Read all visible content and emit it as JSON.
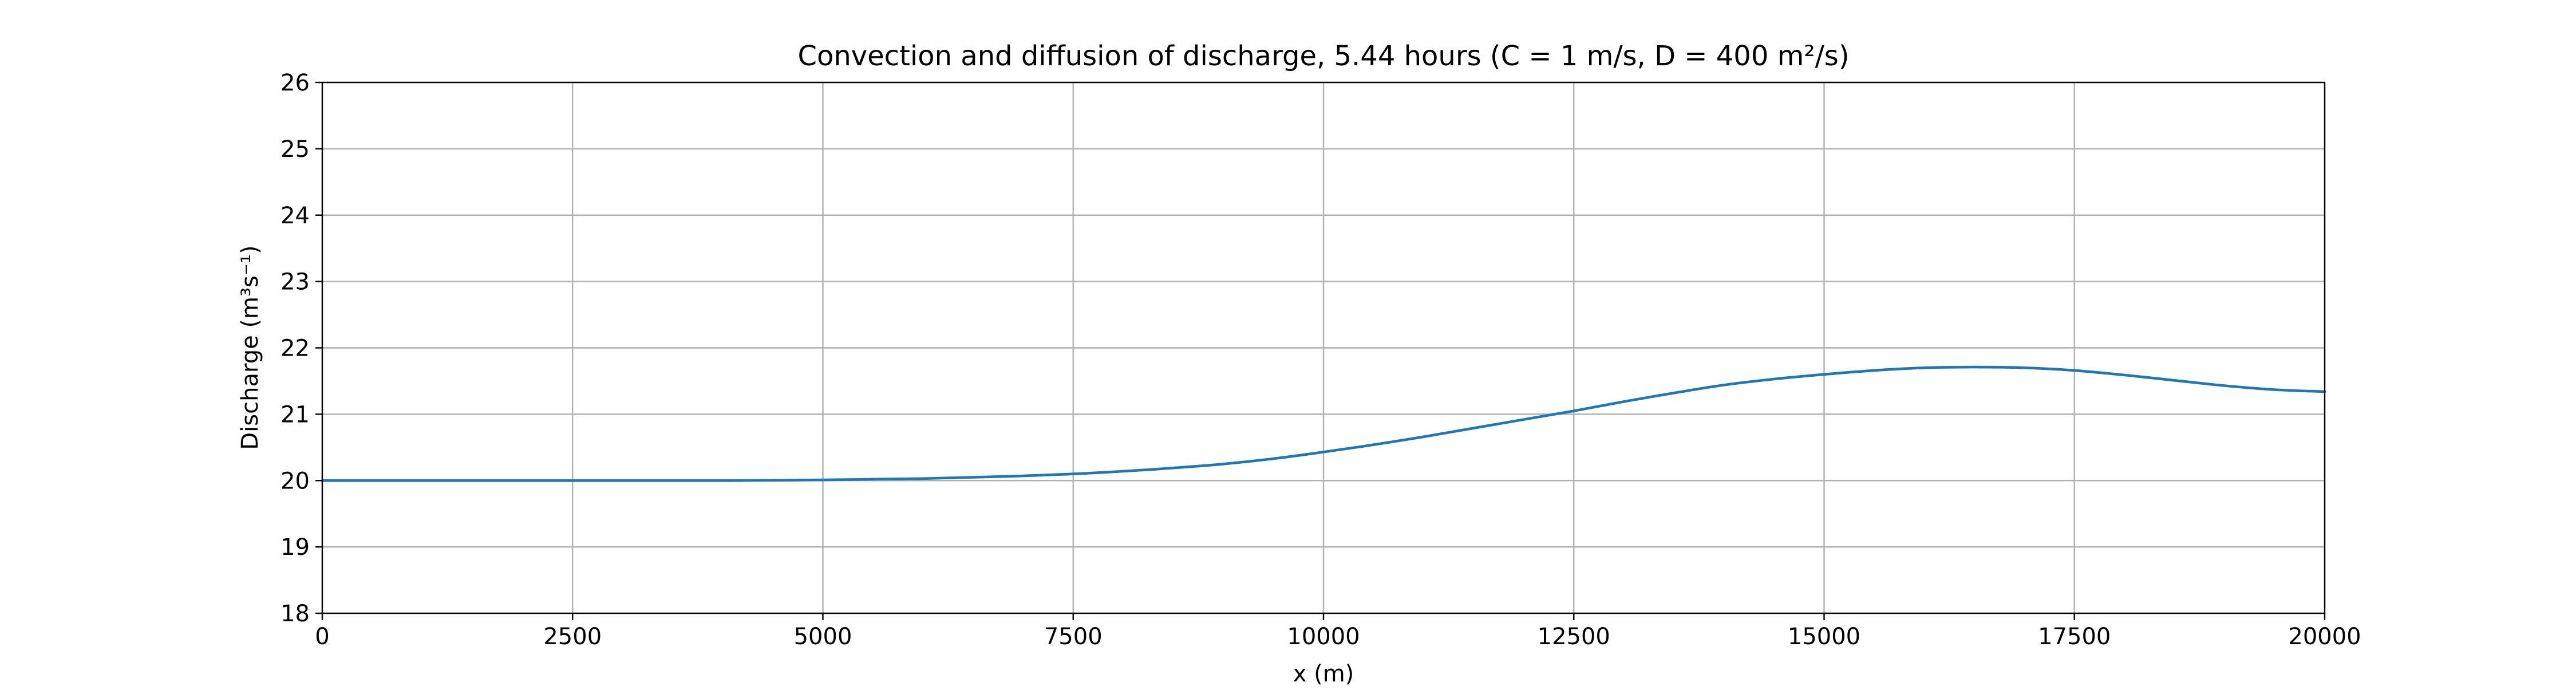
{
  "chart_data": {
    "type": "line",
    "title": "Convection and diffusion of discharge, 5.44 hours (C = 1 m/s, D = 400 m²/s)",
    "xlabel": "x (m)",
    "ylabel": "Discharge (m³s⁻¹)",
    "xlim": [
      0,
      20000
    ],
    "ylim": [
      18,
      26
    ],
    "x_ticks": [
      "0",
      "2500",
      "5000",
      "7500",
      "10000",
      "12500",
      "15000",
      "17500",
      "20000"
    ],
    "y_ticks": [
      "18",
      "19",
      "20",
      "21",
      "22",
      "23",
      "24",
      "25",
      "26"
    ],
    "grid": true,
    "series": [
      {
        "color": "#1f77b4",
        "x": [
          0,
          1000,
          2000,
          3000,
          4000,
          5000,
          5500,
          6000,
          6500,
          7000,
          7500,
          8000,
          8500,
          9000,
          9500,
          10000,
          10500,
          11000,
          11500,
          12000,
          12500,
          13000,
          13500,
          14000,
          14500,
          15000,
          15500,
          16000,
          16500,
          17000,
          17500,
          18000,
          18500,
          19000,
          19500,
          20000
        ],
        "y": [
          20.0,
          20.0,
          20.0,
          20.0,
          20.0,
          20.01,
          20.02,
          20.03,
          20.05,
          20.07,
          20.1,
          20.14,
          20.19,
          20.25,
          20.33,
          20.43,
          20.54,
          20.66,
          20.79,
          20.92,
          21.05,
          21.19,
          21.32,
          21.44,
          21.53,
          21.6,
          21.66,
          21.7,
          21.71,
          21.7,
          21.66,
          21.59,
          21.51,
          21.43,
          21.37,
          21.34
        ]
      }
    ]
  }
}
